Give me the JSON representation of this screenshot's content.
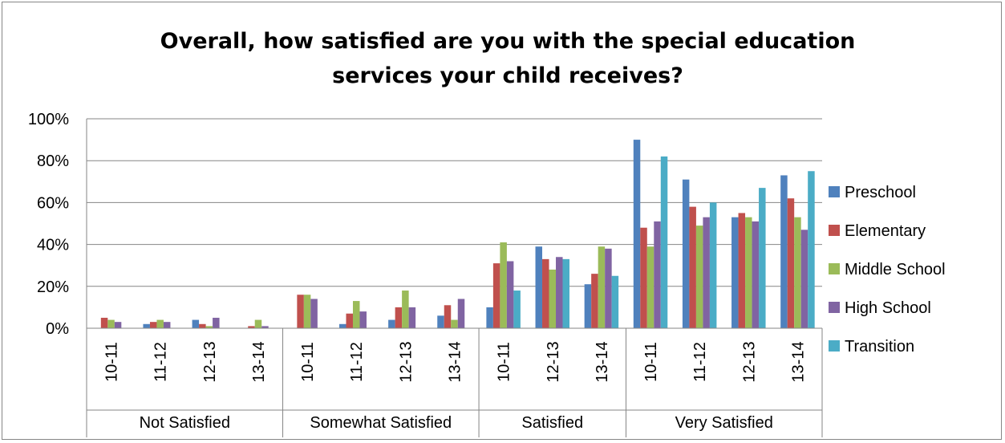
{
  "chart_data": {
    "type": "bar",
    "title": "Overall, how satisfied are you with the special education services your child receives?",
    "title_lines": [
      "Overall, how satisfied are you with the special education",
      "services your child receives?"
    ],
    "xlabel": "",
    "ylabel": "",
    "ylim": [
      0,
      100
    ],
    "yticks": [
      "0%",
      "20%",
      "40%",
      "60%",
      "80%",
      "100%"
    ],
    "grid": true,
    "legend_position": "right",
    "groups": [
      {
        "label": "Not Satisfied",
        "years": [
          "10-11",
          "11-12",
          "12-13",
          "13-14"
        ]
      },
      {
        "label": "Somewhat Satisfied",
        "years": [
          "10-11",
          "11-12",
          "12-13",
          "13-14"
        ]
      },
      {
        "label": "Satisfied",
        "years": [
          "10-11",
          "12-13",
          "13-14"
        ]
      },
      {
        "label": "Very Satisfied",
        "years": [
          "10-11",
          "11-12",
          "12-13",
          "13-14"
        ]
      }
    ],
    "series": [
      {
        "name": "Preschool",
        "color": "#4F81BD",
        "values": [
          0,
          2,
          4,
          0,
          0,
          2,
          4,
          6,
          10,
          39,
          21,
          90,
          71,
          53,
          73
        ]
      },
      {
        "name": "Elementary",
        "color": "#C0504D",
        "values": [
          5,
          3,
          2,
          1,
          16,
          7,
          10,
          11,
          31,
          33,
          26,
          48,
          58,
          55,
          62
        ]
      },
      {
        "name": "Middle School",
        "color": "#9BBB59",
        "values": [
          4,
          4,
          1,
          4,
          16,
          13,
          18,
          4,
          41,
          28,
          39,
          39,
          49,
          53,
          53
        ]
      },
      {
        "name": "High School",
        "color": "#8064A2",
        "values": [
          3,
          3,
          5,
          1,
          14,
          8,
          10,
          14,
          32,
          34,
          38,
          51,
          53,
          51,
          47
        ]
      },
      {
        "name": "Transition",
        "color": "#4BACC6",
        "values": [
          0,
          0,
          0,
          0,
          0,
          0,
          0,
          0,
          18,
          33,
          25,
          82,
          60,
          67,
          75
        ]
      }
    ]
  }
}
